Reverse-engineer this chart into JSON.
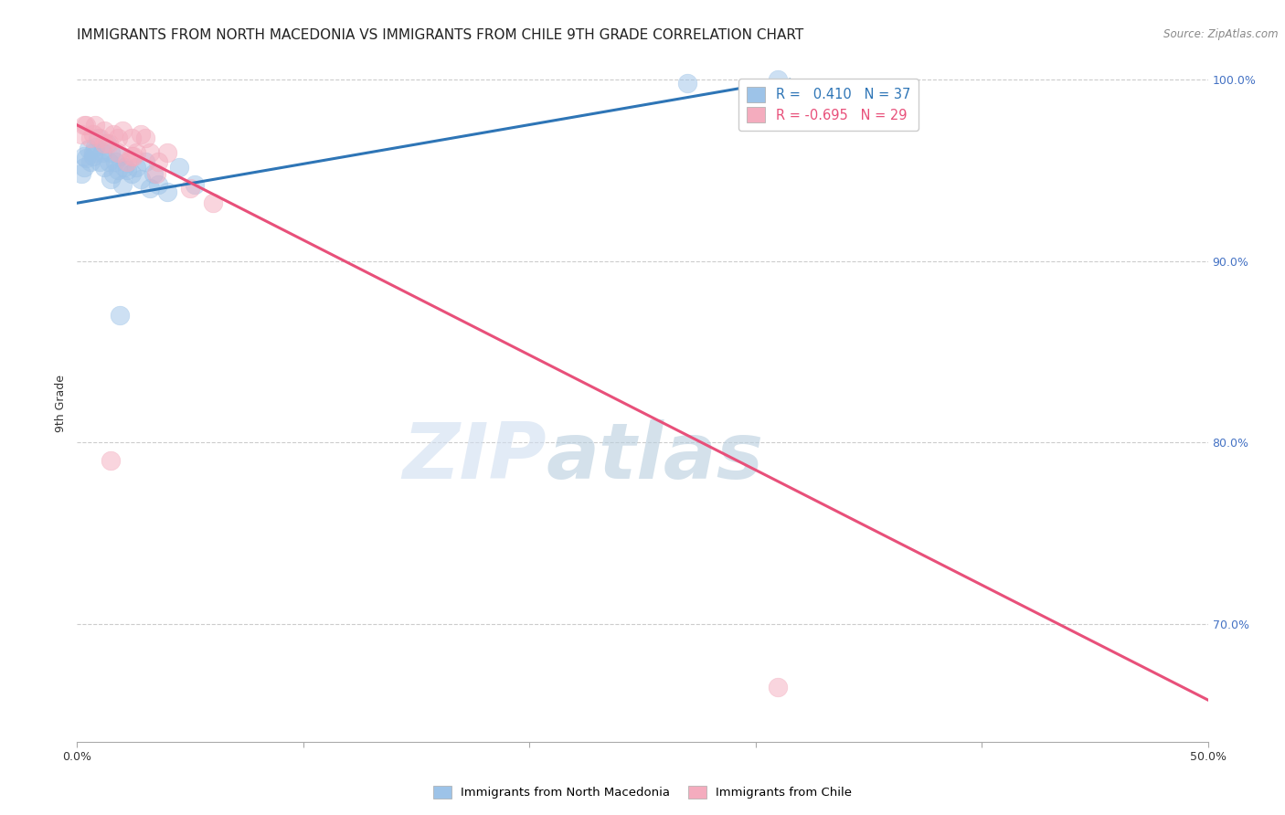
{
  "title": "IMMIGRANTS FROM NORTH MACEDONIA VS IMMIGRANTS FROM CHILE 9TH GRADE CORRELATION CHART",
  "source": "Source: ZipAtlas.com",
  "ylabel": "9th Grade",
  "x_min": 0.0,
  "x_max": 0.5,
  "y_min": 0.635,
  "y_max": 1.008,
  "y_ticks_right": [
    0.7,
    0.8,
    0.9,
    1.0
  ],
  "y_tick_labels_right": [
    "70.0%",
    "80.0%",
    "90.0%",
    "100.0%"
  ],
  "legend1_label": "R =   0.410   N = 37",
  "legend2_label": "R = -0.695   N = 29",
  "blue_color": "#9DC3E8",
  "pink_color": "#F4ACBE",
  "blue_line_color": "#2E75B6",
  "pink_line_color": "#E8507A",
  "blue_scatter_x": [
    0.002,
    0.003,
    0.004,
    0.005,
    0.006,
    0.007,
    0.008,
    0.009,
    0.01,
    0.011,
    0.012,
    0.013,
    0.014,
    0.015,
    0.016,
    0.017,
    0.018,
    0.019,
    0.02,
    0.022,
    0.024,
    0.026,
    0.028,
    0.03,
    0.032,
    0.034,
    0.036,
    0.04,
    0.045,
    0.052,
    0.003,
    0.007,
    0.015,
    0.021,
    0.019,
    0.27,
    0.31
  ],
  "blue_scatter_y": [
    0.948,
    0.952,
    0.957,
    0.962,
    0.955,
    0.958,
    0.963,
    0.968,
    0.955,
    0.96,
    0.952,
    0.965,
    0.955,
    0.96,
    0.948,
    0.955,
    0.95,
    0.958,
    0.942,
    0.95,
    0.948,
    0.952,
    0.945,
    0.955,
    0.94,
    0.948,
    0.942,
    0.938,
    0.952,
    0.942,
    0.958,
    0.96,
    0.945,
    0.952,
    0.87,
    0.998,
    1.0
  ],
  "pink_scatter_x": [
    0.002,
    0.004,
    0.006,
    0.008,
    0.01,
    0.012,
    0.014,
    0.016,
    0.018,
    0.02,
    0.022,
    0.024,
    0.026,
    0.028,
    0.03,
    0.032,
    0.036,
    0.04,
    0.003,
    0.007,
    0.012,
    0.018,
    0.024,
    0.035,
    0.05,
    0.06,
    0.31,
    0.025,
    0.015
  ],
  "pink_scatter_y": [
    0.97,
    0.975,
    0.968,
    0.975,
    0.968,
    0.972,
    0.965,
    0.97,
    0.968,
    0.972,
    0.955,
    0.968,
    0.96,
    0.97,
    0.968,
    0.96,
    0.955,
    0.96,
    0.975,
    0.97,
    0.965,
    0.96,
    0.958,
    0.948,
    0.94,
    0.932,
    0.665,
    0.958,
    0.79
  ],
  "blue_line_x": [
    0.0,
    0.315
  ],
  "blue_line_y": [
    0.932,
    1.0
  ],
  "pink_line_x": [
    0.0,
    0.5
  ],
  "pink_line_y": [
    0.975,
    0.658
  ],
  "grid_color": "#CCCCCC",
  "background_color": "#FFFFFF",
  "title_fontsize": 11,
  "axis_label_fontsize": 9,
  "tick_fontsize": 9,
  "legend_fontsize": 10.5
}
